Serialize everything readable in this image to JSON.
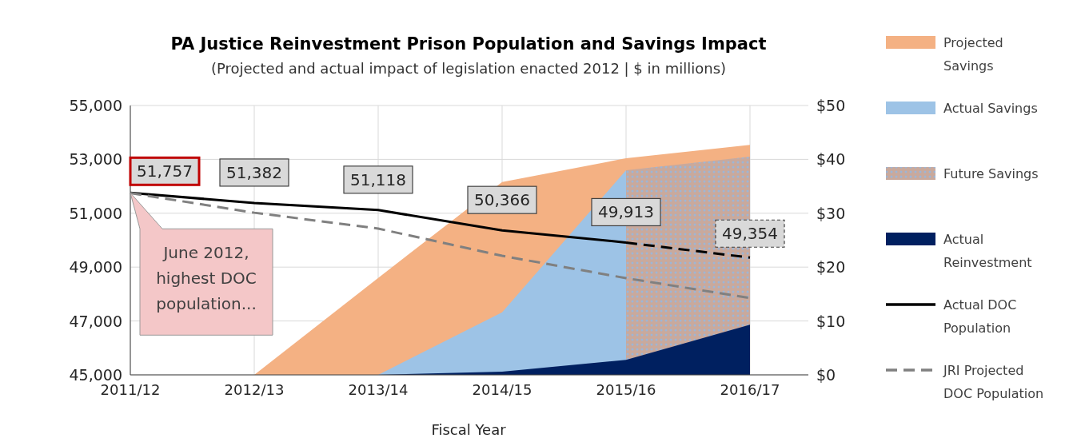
{
  "chart_data": {
    "type": "line",
    "title": "PA Justice Reinvestment Prison Population and Savings Impact",
    "subtitle": "(Projected and actual impact of legislation enacted 2012 | $ in millions)",
    "xlabel": "Fiscal Year",
    "categories": [
      "2011/12",
      "2012/13",
      "2013/14",
      "2014/15",
      "2015/16",
      "2016/17"
    ],
    "ylim": [
      45000,
      55000
    ],
    "yticks": [
      {
        "value": 45000,
        "label": "45,000"
      },
      {
        "value": 47000,
        "label": "47,000"
      },
      {
        "value": 49000,
        "label": "49,000"
      },
      {
        "value": 51000,
        "label": "51,000"
      },
      {
        "value": 53000,
        "label": "53,000"
      },
      {
        "value": 55000,
        "label": "55,000"
      }
    ],
    "y2lim": [
      0,
      50
    ],
    "y2ticks": [
      {
        "value": 0,
        "label": "$0"
      },
      {
        "value": 10,
        "label": "$10"
      },
      {
        "value": 20,
        "label": "$20"
      },
      {
        "value": 30,
        "label": "$30"
      },
      {
        "value": 40,
        "label": "$40"
      },
      {
        "value": 50,
        "label": "$50"
      }
    ],
    "grid": true,
    "legend": "right",
    "series": [
      {
        "name": "Projected Savings",
        "type": "area",
        "axis": "y2",
        "color": "#f4b183",
        "values": [
          null,
          0,
          18,
          35.8,
          40.2,
          42.7
        ]
      },
      {
        "name": "Actual Savings",
        "type": "area",
        "axis": "y2",
        "color": "#9dc3e6",
        "values": [
          null,
          null,
          0,
          11.6,
          38,
          null
        ]
      },
      {
        "name": "Future Savings",
        "type": "area",
        "axis": "y2",
        "color": "#c9a99c",
        "values": [
          null,
          null,
          null,
          null,
          38,
          40.5
        ]
      },
      {
        "name": "Actual Reinvestment",
        "type": "area",
        "axis": "y2",
        "color": "#002060",
        "values": [
          null,
          null,
          0,
          0.6,
          2.8,
          9.3
        ]
      },
      {
        "name": "Actual DOC Population",
        "color": "#000000",
        "line_style": "solid",
        "values": [
          51757,
          51382,
          51118,
          50366,
          49913,
          null
        ],
        "value_labels": [
          "51,757",
          "51,382",
          "51,118",
          "50,366",
          "49,913",
          null
        ]
      },
      {
        "color": "#000000",
        "line_style": "dashed",
        "values": [
          null,
          null,
          null,
          null,
          49910,
          49354
        ],
        "value_labels": [
          null,
          null,
          null,
          null,
          null,
          "49,354"
        ]
      },
      {
        "name": "JRI Projected DOC Population",
        "color": "#808080",
        "line_style": "dashed",
        "values": [
          51750,
          51020,
          50430,
          49420,
          48590,
          47850
        ]
      }
    ],
    "annotations": [
      "June 2012, highest DOC population..."
    ]
  }
}
